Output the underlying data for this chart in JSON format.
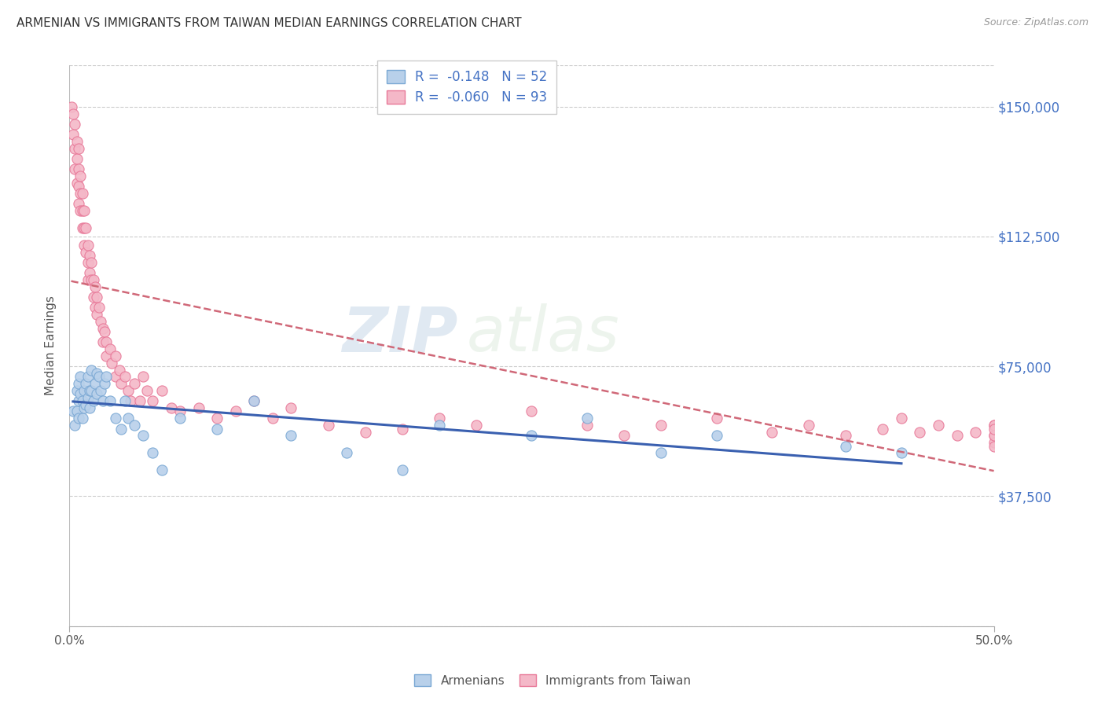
{
  "title": "ARMENIAN VS IMMIGRANTS FROM TAIWAN MEDIAN EARNINGS CORRELATION CHART",
  "source": "Source: ZipAtlas.com",
  "ylabel": "Median Earnings",
  "yticks": [
    0,
    37500,
    75000,
    112500,
    150000
  ],
  "ytick_labels": [
    "",
    "$37,500",
    "$75,000",
    "$112,500",
    "$150,000"
  ],
  "ylim": [
    0,
    162000
  ],
  "xlim": [
    0.0,
    0.5
  ],
  "watermark_zip": "ZIP",
  "watermark_atlas": "atlas",
  "legend_armenian": "R =  -0.148   N = 52",
  "legend_taiwan": "R =  -0.060   N = 93",
  "legend_label_armenian": "Armenians",
  "legend_label_taiwan": "Immigrants from Taiwan",
  "color_armenian_fill": "#b8d0ea",
  "color_armenian_edge": "#7aa8d4",
  "color_taiwan_fill": "#f4b8c8",
  "color_taiwan_edge": "#e87898",
  "color_trendline_armenian": "#3a60b0",
  "color_trendline_taiwan": "#d06878",
  "armenian_x": [
    0.002,
    0.003,
    0.004,
    0.004,
    0.005,
    0.005,
    0.005,
    0.006,
    0.006,
    0.007,
    0.007,
    0.008,
    0.008,
    0.009,
    0.009,
    0.01,
    0.01,
    0.011,
    0.011,
    0.012,
    0.012,
    0.013,
    0.014,
    0.015,
    0.015,
    0.016,
    0.017,
    0.018,
    0.019,
    0.02,
    0.022,
    0.025,
    0.028,
    0.03,
    0.032,
    0.035,
    0.04,
    0.045,
    0.05,
    0.06,
    0.08,
    0.1,
    0.12,
    0.15,
    0.18,
    0.2,
    0.25,
    0.28,
    0.32,
    0.35,
    0.42,
    0.45
  ],
  "armenian_y": [
    62000,
    58000,
    68000,
    62000,
    70000,
    65000,
    60000,
    72000,
    67000,
    65000,
    60000,
    68000,
    63000,
    70000,
    64000,
    72000,
    66000,
    68000,
    63000,
    74000,
    68000,
    65000,
    70000,
    73000,
    67000,
    72000,
    68000,
    65000,
    70000,
    72000,
    65000,
    60000,
    57000,
    65000,
    60000,
    58000,
    55000,
    50000,
    45000,
    60000,
    57000,
    65000,
    55000,
    50000,
    45000,
    58000,
    55000,
    60000,
    50000,
    55000,
    52000,
    50000
  ],
  "taiwan_x": [
    0.001,
    0.002,
    0.002,
    0.003,
    0.003,
    0.003,
    0.004,
    0.004,
    0.004,
    0.005,
    0.005,
    0.005,
    0.005,
    0.006,
    0.006,
    0.006,
    0.007,
    0.007,
    0.007,
    0.008,
    0.008,
    0.008,
    0.009,
    0.009,
    0.01,
    0.01,
    0.01,
    0.011,
    0.011,
    0.012,
    0.012,
    0.013,
    0.013,
    0.014,
    0.014,
    0.015,
    0.015,
    0.016,
    0.017,
    0.018,
    0.018,
    0.019,
    0.02,
    0.02,
    0.022,
    0.023,
    0.025,
    0.025,
    0.027,
    0.028,
    0.03,
    0.032,
    0.033,
    0.035,
    0.038,
    0.04,
    0.042,
    0.045,
    0.05,
    0.055,
    0.06,
    0.07,
    0.08,
    0.09,
    0.1,
    0.11,
    0.12,
    0.14,
    0.16,
    0.18,
    0.2,
    0.22,
    0.25,
    0.28,
    0.3,
    0.32,
    0.35,
    0.38,
    0.4,
    0.42,
    0.44,
    0.45,
    0.46,
    0.47,
    0.48,
    0.49,
    0.5,
    0.5,
    0.5,
    0.5,
    0.5,
    0.5,
    0.5
  ],
  "taiwan_y": [
    150000,
    148000,
    142000,
    145000,
    138000,
    132000,
    140000,
    135000,
    128000,
    138000,
    132000,
    127000,
    122000,
    130000,
    125000,
    120000,
    125000,
    120000,
    115000,
    120000,
    115000,
    110000,
    115000,
    108000,
    110000,
    105000,
    100000,
    107000,
    102000,
    105000,
    100000,
    100000,
    95000,
    98000,
    92000,
    95000,
    90000,
    92000,
    88000,
    86000,
    82000,
    85000,
    82000,
    78000,
    80000,
    76000,
    78000,
    72000,
    74000,
    70000,
    72000,
    68000,
    65000,
    70000,
    65000,
    72000,
    68000,
    65000,
    68000,
    63000,
    62000,
    63000,
    60000,
    62000,
    65000,
    60000,
    63000,
    58000,
    56000,
    57000,
    60000,
    58000,
    62000,
    58000,
    55000,
    58000,
    60000,
    56000,
    58000,
    55000,
    57000,
    60000,
    56000,
    58000,
    55000,
    56000,
    58000,
    55000,
    53000,
    58000,
    55000,
    57000,
    52000
  ]
}
